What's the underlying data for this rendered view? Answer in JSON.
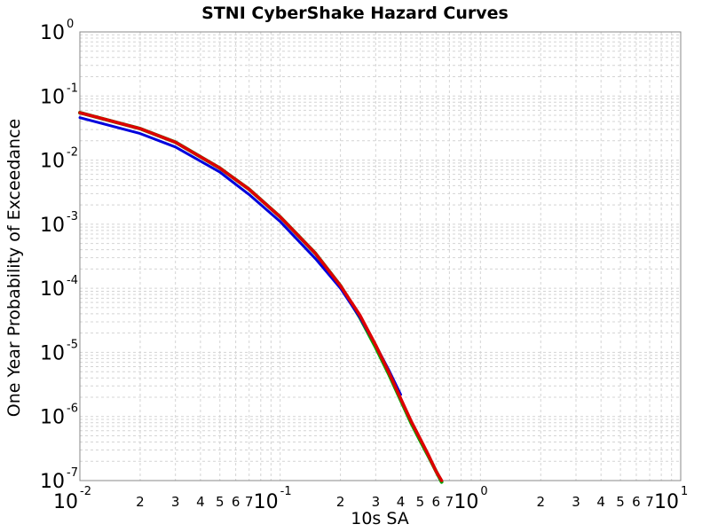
{
  "chart_data": {
    "type": "line",
    "title": "STNI CyberShake Hazard Curves",
    "xlabel": "10s SA",
    "ylabel": "One Year Probability of Exceedance",
    "x_scale": "log",
    "y_scale": "log",
    "xlim": [
      0.01,
      10
    ],
    "ylim": [
      1e-07,
      1
    ],
    "grid": true,
    "x_major_ticks": [
      {
        "value": 0.01,
        "base": "10",
        "exp": "-2"
      },
      {
        "value": 0.1,
        "base": "10",
        "exp": "-1"
      },
      {
        "value": 1,
        "base": "10",
        "exp": "0"
      },
      {
        "value": 10,
        "base": "10",
        "exp": "1"
      }
    ],
    "x_minor_tick_labels": [
      "2",
      "3",
      "4",
      "5",
      "6",
      "7"
    ],
    "y_major_ticks": [
      {
        "value": 1,
        "base": "10",
        "exp": "0"
      },
      {
        "value": 0.1,
        "base": "10",
        "exp": "-1"
      },
      {
        "value": 0.01,
        "base": "10",
        "exp": "-2"
      },
      {
        "value": 0.001,
        "base": "10",
        "exp": "-3"
      },
      {
        "value": 0.0001,
        "base": "10",
        "exp": "-4"
      },
      {
        "value": 1e-05,
        "base": "10",
        "exp": "-5"
      },
      {
        "value": 1e-06,
        "base": "10",
        "exp": "-6"
      },
      {
        "value": 1e-07,
        "base": "10",
        "exp": "-7"
      }
    ],
    "series": [
      {
        "color": "#00aa00",
        "x": [
          0.01,
          0.02,
          0.03,
          0.05,
          0.07,
          0.1,
          0.15,
          0.2,
          0.25,
          0.3,
          0.35,
          0.4,
          0.45,
          0.5,
          0.55,
          0.6,
          0.64
        ],
        "y": [
          0.055,
          0.031,
          0.019,
          0.0075,
          0.0035,
          0.0013,
          0.00035,
          0.00011,
          3.5e-05,
          1.2e-05,
          4.5e-06,
          1.8e-06,
          8e-07,
          4.2e-07,
          2.4e-07,
          1.4e-07,
          9.5e-08
        ]
      },
      {
        "color": "#0000dd",
        "x": [
          0.01,
          0.02,
          0.03,
          0.05,
          0.07,
          0.1,
          0.15,
          0.2,
          0.25,
          0.3,
          0.35,
          0.4
        ],
        "y": [
          0.046,
          0.026,
          0.016,
          0.0065,
          0.0029,
          0.0011,
          0.00029,
          0.0001,
          3.5e-05,
          1.3e-05,
          5.2e-06,
          2.2e-06
        ]
      },
      {
        "color": "#dd0000",
        "x": [
          0.01,
          0.02,
          0.03,
          0.05,
          0.07,
          0.1,
          0.15,
          0.2,
          0.25,
          0.3,
          0.35,
          0.4,
          0.45,
          0.5,
          0.55,
          0.6,
          0.64
        ],
        "y": [
          0.055,
          0.031,
          0.019,
          0.0075,
          0.0035,
          0.0013,
          0.00035,
          0.00011,
          3.8e-05,
          1.3e-05,
          4.8e-06,
          1.9e-06,
          8.5e-07,
          4.5e-07,
          2.5e-07,
          1.4e-07,
          1e-07
        ]
      }
    ]
  }
}
